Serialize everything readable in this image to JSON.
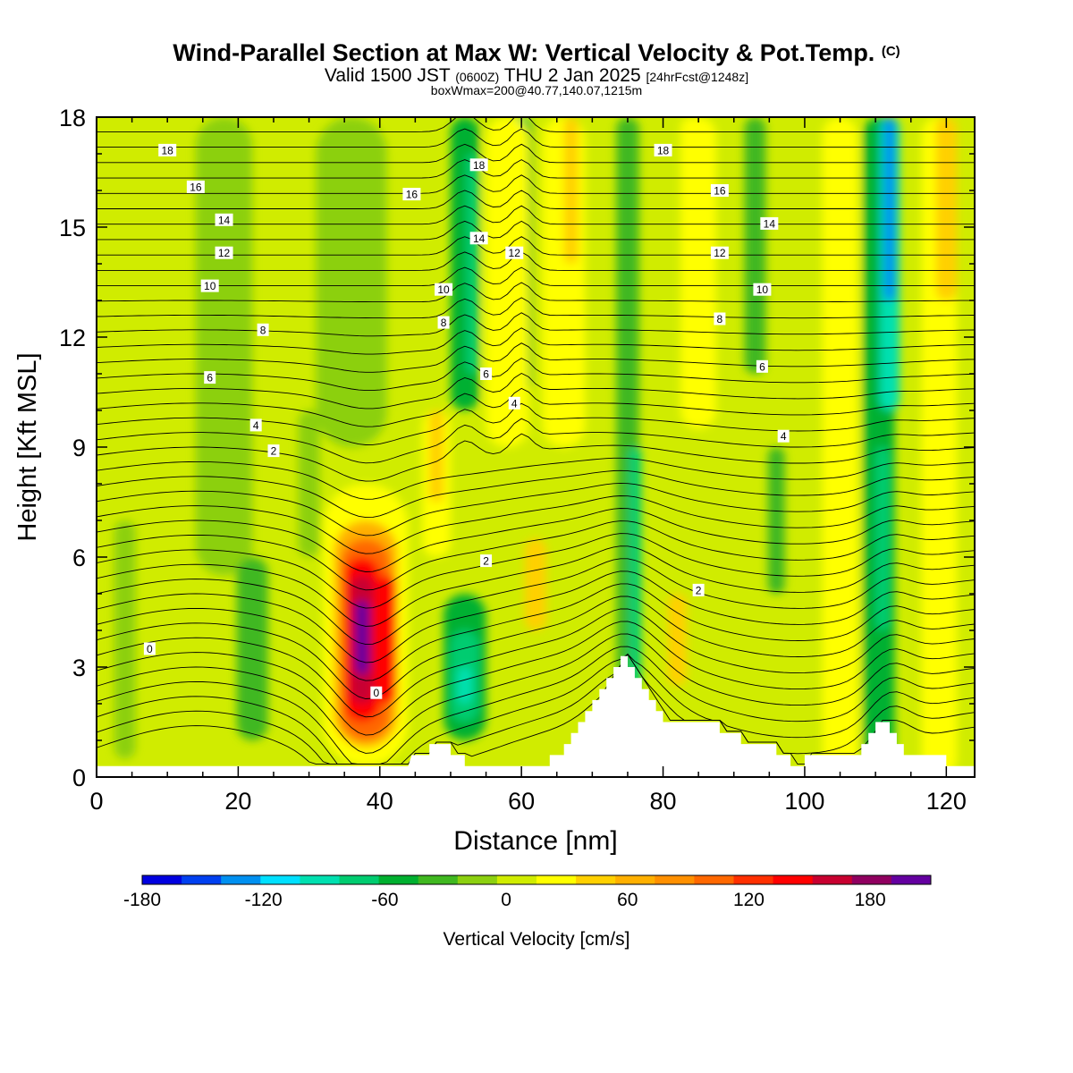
{
  "header": {
    "title": "Wind-Parallel Section at Max W: Vertical Velocity & Pot.Temp.",
    "copyright": "(C)",
    "valid_prefix": "Valid 1500 JST",
    "valid_utc": "(0600Z)",
    "valid_date": "THU 2 Jan 2025",
    "valid_fcst": "[24hrFcst@1248z]",
    "box_info": "boxWmax=200@40.77,140.07,1215m"
  },
  "colorbar": {
    "label": "Vertical Velocity [cm/s]",
    "tick_labels": [
      "-180",
      "-120",
      "-60",
      "0",
      "60",
      "120",
      "180"
    ],
    "colors": [
      "#0000e0",
      "#0040f0",
      "#0090f0",
      "#00e0ff",
      "#00e0b0",
      "#00cc70",
      "#00b030",
      "#40b820",
      "#8cd010",
      "#d0ec00",
      "#ffff00",
      "#ffd000",
      "#ffb000",
      "#ff9000",
      "#ff6800",
      "#ff3000",
      "#ff0000",
      "#c80030",
      "#900060",
      "#6400a0"
    ]
  },
  "chart_data": {
    "type": "heatmap",
    "title": "Wind-Parallel Section at Max W: Vertical Velocity & Pot.Temp.",
    "xlabel": "Distance [nm]",
    "ylabel": "Height [Kft MSL]",
    "xlim": [
      0,
      124
    ],
    "ylim": [
      0,
      18
    ],
    "x_ticks": [
      0,
      20,
      40,
      60,
      80,
      100,
      120
    ],
    "y_ticks": [
      0,
      3,
      6,
      9,
      12,
      15,
      18
    ],
    "colorbar_label": "Vertical Velocity [cm/s]",
    "colorbar_range": [
      -180,
      210
    ],
    "colorbar_step": 20,
    "contour_variable": "Potential temperature (deg C)",
    "contour_levels": [
      0,
      2,
      4,
      6,
      8,
      10,
      12,
      14,
      16,
      18
    ],
    "max_updraft": {
      "x": 38,
      "y_range": [
        2,
        5.5
      ],
      "value": 200
    },
    "strong_downdrafts": [
      {
        "x": 52,
        "y": 2.5,
        "value": -90
      },
      {
        "x": 112,
        "y": 17,
        "value": -130
      },
      {
        "x": 111,
        "y": 7,
        "value": -90
      }
    ],
    "terrain": [
      [
        0,
        0.3
      ],
      [
        44,
        0.3
      ],
      [
        44.5,
        0.6
      ],
      [
        47,
        0.6
      ],
      [
        47,
        0.9
      ],
      [
        50,
        0.9
      ],
      [
        50,
        0.6
      ],
      [
        52,
        0.6
      ],
      [
        52,
        0.3
      ],
      [
        64,
        0.3
      ],
      [
        64,
        0.6
      ],
      [
        66,
        0.6
      ],
      [
        66,
        0.9
      ],
      [
        67,
        0.9
      ],
      [
        67,
        1.2
      ],
      [
        68,
        1.2
      ],
      [
        68,
        1.5
      ],
      [
        69,
        1.5
      ],
      [
        69,
        1.8
      ],
      [
        70,
        1.8
      ],
      [
        70,
        2.1
      ],
      [
        71,
        2.1
      ],
      [
        71,
        2.4
      ],
      [
        72,
        2.4
      ],
      [
        72,
        2.7
      ],
      [
        73,
        2.7
      ],
      [
        73,
        3.0
      ],
      [
        74,
        3.0
      ],
      [
        74,
        3.3
      ],
      [
        75,
        3.3
      ],
      [
        75,
        3.0
      ],
      [
        76,
        3.0
      ],
      [
        76,
        2.7
      ],
      [
        77,
        2.7
      ],
      [
        77,
        2.4
      ],
      [
        78,
        2.4
      ],
      [
        78,
        2.1
      ],
      [
        79,
        2.1
      ],
      [
        79,
        1.8
      ],
      [
        80,
        1.8
      ],
      [
        80,
        1.5
      ],
      [
        88,
        1.5
      ],
      [
        88,
        1.2
      ],
      [
        91,
        1.2
      ],
      [
        91,
        0.9
      ],
      [
        96,
        0.9
      ],
      [
        96,
        0.6
      ],
      [
        98,
        0.6
      ],
      [
        98,
        0.3
      ],
      [
        100,
        0.3
      ],
      [
        100,
        0.6
      ],
      [
        108,
        0.6
      ],
      [
        108,
        0.9
      ],
      [
        109,
        0.9
      ],
      [
        109,
        1.2
      ],
      [
        110,
        1.2
      ],
      [
        110,
        1.5
      ],
      [
        112,
        1.5
      ],
      [
        112,
        1.2
      ],
      [
        113,
        1.2
      ],
      [
        113,
        0.9
      ],
      [
        114,
        0.9
      ],
      [
        114,
        0.6
      ],
      [
        120,
        0.6
      ],
      [
        120,
        0.3
      ],
      [
        124,
        0.3
      ]
    ]
  }
}
